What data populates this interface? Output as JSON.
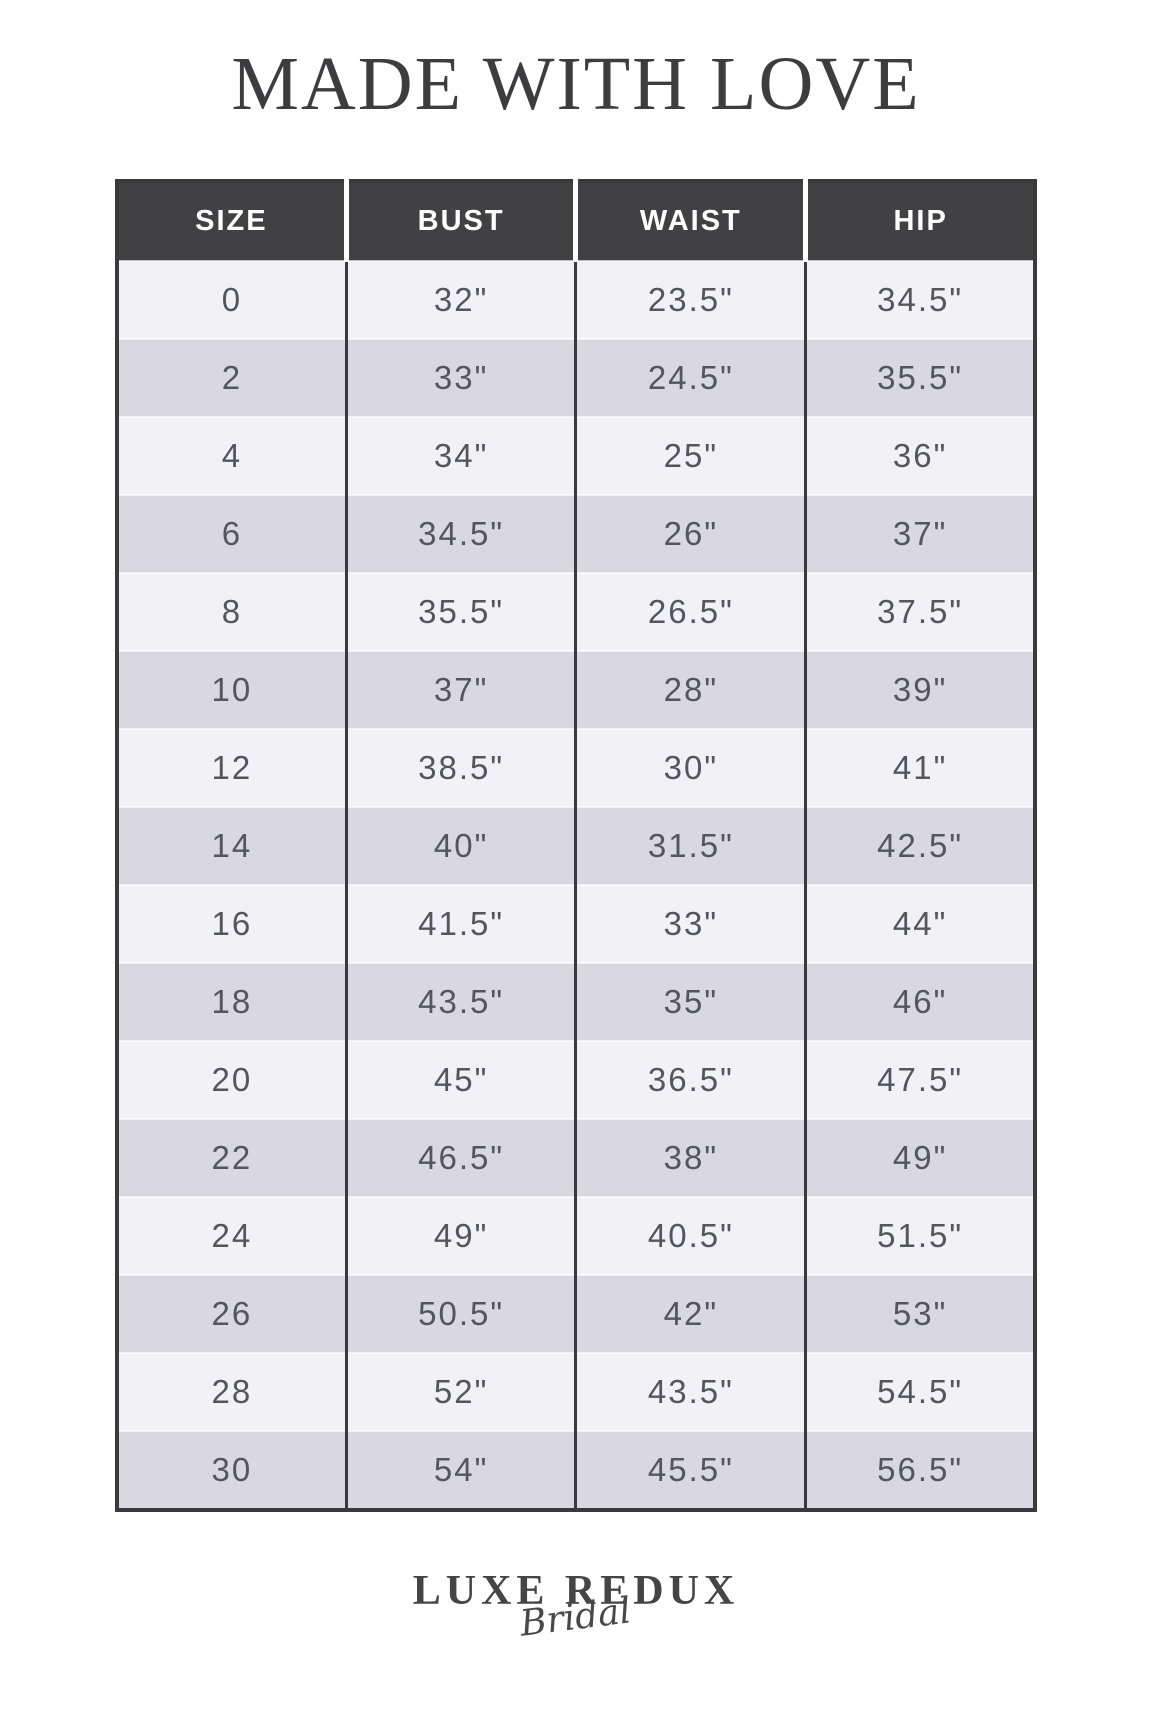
{
  "chart_data": {
    "type": "table",
    "title": "MADE WITH LOVE",
    "columns": [
      "SIZE",
      "BUST",
      "WAIST",
      "HIP"
    ],
    "rows": [
      [
        "0",
        "32\"",
        "23.5\"",
        "34.5\""
      ],
      [
        "2",
        "33\"",
        "24.5\"",
        "35.5\""
      ],
      [
        "4",
        "34\"",
        "25\"",
        "36\""
      ],
      [
        "6",
        "34.5\"",
        "26\"",
        "37\""
      ],
      [
        "8",
        "35.5\"",
        "26.5\"",
        "37.5\""
      ],
      [
        "10",
        "37\"",
        "28\"",
        "39\""
      ],
      [
        "12",
        "38.5\"",
        "30\"",
        "41\""
      ],
      [
        "14",
        "40\"",
        "31.5\"",
        "42.5\""
      ],
      [
        "16",
        "41.5\"",
        "33\"",
        "44\""
      ],
      [
        "18",
        "43.5\"",
        "35\"",
        "46\""
      ],
      [
        "20",
        "45\"",
        "36.5\"",
        "47.5\""
      ],
      [
        "22",
        "46.5\"",
        "38\"",
        "49\""
      ],
      [
        "24",
        "49\"",
        "40.5\"",
        "51.5\""
      ],
      [
        "26",
        "50.5\"",
        "42\"",
        "53\""
      ],
      [
        "28",
        "52\"",
        "43.5\"",
        "54.5\""
      ],
      [
        "30",
        "54\"",
        "45.5\"",
        "56.5\""
      ]
    ],
    "layout": {
      "row_striping": "alternating light/dark starting light",
      "header_position": "top"
    }
  },
  "footer_logo": {
    "brand": "LUXE REDUX",
    "sub": "Bridal"
  },
  "colors": {
    "page_bg": "#ffffff",
    "header_bg": "#414143",
    "header_text": "#ffffff",
    "row_light": "#f2f1f6",
    "row_dark": "#d8d7e2",
    "table_border": "#3a3a3c",
    "cell_text": "#55555d",
    "title_text": "#3d3d3f",
    "logo_text": "#454547"
  }
}
